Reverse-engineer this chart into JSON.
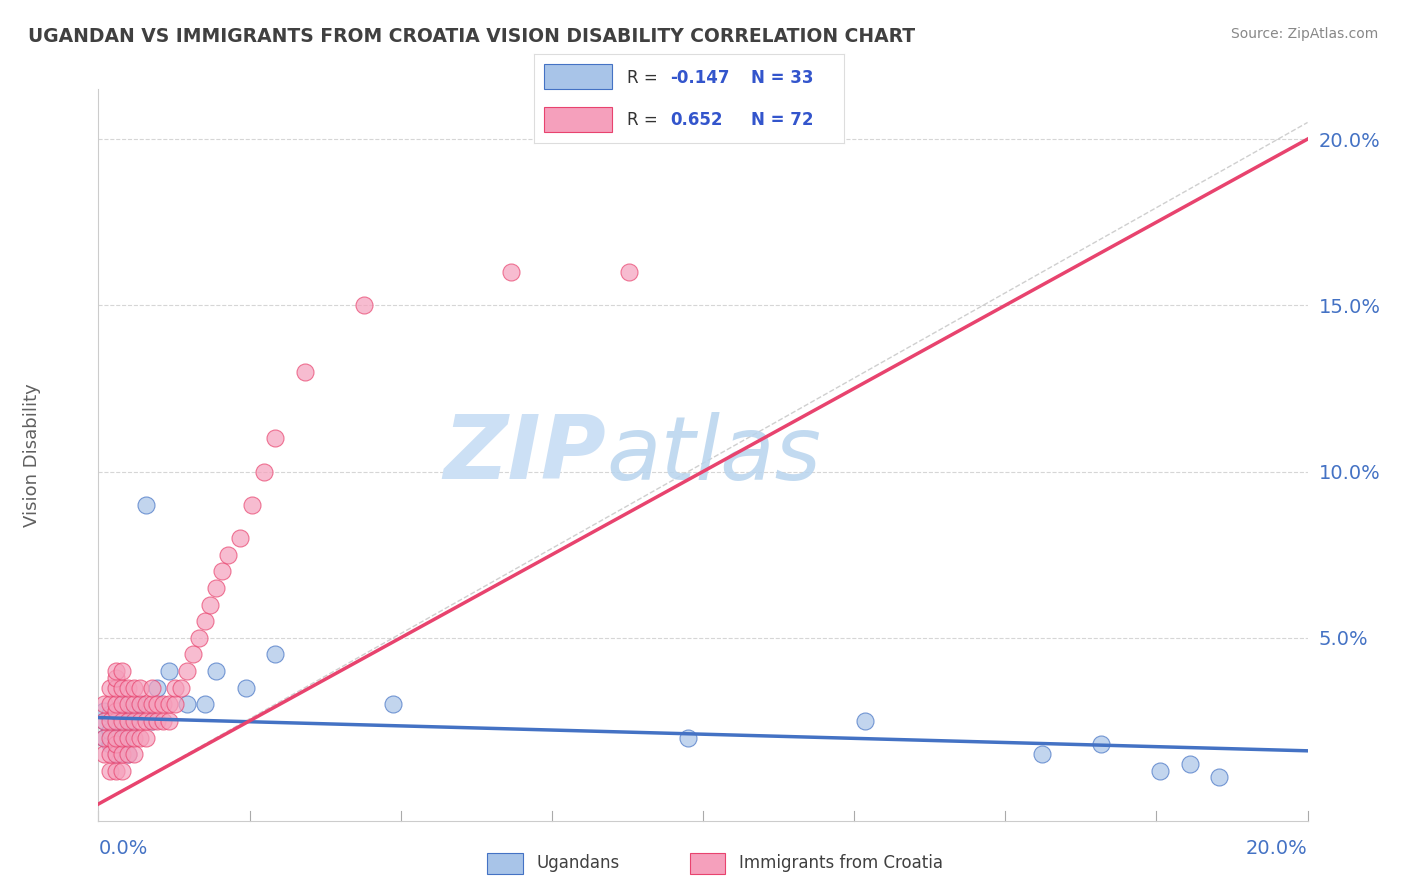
{
  "title": "UGANDAN VS IMMIGRANTS FROM CROATIA VISION DISABILITY CORRELATION CHART",
  "source": "Source: ZipAtlas.com",
  "ylabel": "Vision Disability",
  "xlim": [
    0.0,
    0.205
  ],
  "ylim": [
    -0.005,
    0.215
  ],
  "r_ugandan": -0.147,
  "n_ugandan": 33,
  "r_croatia": 0.652,
  "n_croatia": 72,
  "ugandan_color": "#a8c4e8",
  "croatia_color": "#f5a0bc",
  "ugandan_line_color": "#4472C4",
  "croatia_line_color": "#E8436E",
  "watermark_zip": "ZIP",
  "watermark_atlas": "atlas",
  "watermark_color": "#cce0f5",
  "legend_r_color": "#3355cc",
  "background_color": "#ffffff",
  "grid_color": "#cccccc",
  "title_color": "#404040",
  "axis_label_color": "#4472C4",
  "ugandan_scatter_x": [
    0.001,
    0.001,
    0.001,
    0.002,
    0.002,
    0.002,
    0.003,
    0.003,
    0.003,
    0.004,
    0.004,
    0.005,
    0.005,
    0.005,
    0.006,
    0.007,
    0.008,
    0.009,
    0.01,
    0.012,
    0.015,
    0.018,
    0.02,
    0.025,
    0.03,
    0.05,
    0.1,
    0.13,
    0.16,
    0.17,
    0.18,
    0.185,
    0.19
  ],
  "ugandan_scatter_y": [
    0.02,
    0.025,
    0.028,
    0.018,
    0.022,
    0.027,
    0.015,
    0.02,
    0.025,
    0.018,
    0.03,
    0.022,
    0.025,
    0.015,
    0.028,
    0.03,
    0.09,
    0.025,
    0.035,
    0.04,
    0.03,
    0.03,
    0.04,
    0.035,
    0.045,
    0.03,
    0.02,
    0.025,
    0.015,
    0.018,
    0.01,
    0.012,
    0.008
  ],
  "croatia_scatter_x": [
    0.001,
    0.001,
    0.001,
    0.001,
    0.002,
    0.002,
    0.002,
    0.002,
    0.002,
    0.002,
    0.003,
    0.003,
    0.003,
    0.003,
    0.003,
    0.003,
    0.003,
    0.003,
    0.003,
    0.003,
    0.004,
    0.004,
    0.004,
    0.004,
    0.004,
    0.004,
    0.004,
    0.005,
    0.005,
    0.005,
    0.005,
    0.005,
    0.006,
    0.006,
    0.006,
    0.006,
    0.006,
    0.007,
    0.007,
    0.007,
    0.007,
    0.008,
    0.008,
    0.008,
    0.009,
    0.009,
    0.009,
    0.01,
    0.01,
    0.011,
    0.011,
    0.012,
    0.012,
    0.013,
    0.013,
    0.014,
    0.015,
    0.016,
    0.017,
    0.018,
    0.019,
    0.02,
    0.021,
    0.022,
    0.024,
    0.026,
    0.028,
    0.03,
    0.035,
    0.045,
    0.07,
    0.09
  ],
  "croatia_scatter_y": [
    0.015,
    0.02,
    0.025,
    0.03,
    0.01,
    0.015,
    0.02,
    0.025,
    0.03,
    0.035,
    0.01,
    0.015,
    0.018,
    0.02,
    0.025,
    0.028,
    0.03,
    0.035,
    0.038,
    0.04,
    0.01,
    0.015,
    0.02,
    0.025,
    0.03,
    0.035,
    0.04,
    0.015,
    0.02,
    0.025,
    0.03,
    0.035,
    0.015,
    0.02,
    0.025,
    0.03,
    0.035,
    0.02,
    0.025,
    0.03,
    0.035,
    0.02,
    0.025,
    0.03,
    0.025,
    0.03,
    0.035,
    0.025,
    0.03,
    0.025,
    0.03,
    0.025,
    0.03,
    0.03,
    0.035,
    0.035,
    0.04,
    0.045,
    0.05,
    0.055,
    0.06,
    0.065,
    0.07,
    0.075,
    0.08,
    0.09,
    0.1,
    0.11,
    0.13,
    0.15,
    0.16,
    0.16
  ],
  "ugandan_trendline": [
    0.026,
    0.016
  ],
  "croatia_trendline": [
    0.0,
    0.2
  ],
  "ytick_vals": [
    0.05,
    0.1,
    0.15,
    0.2
  ],
  "ytick_labels": [
    "5.0%",
    "10.0%",
    "15.0%",
    "20.0%"
  ]
}
